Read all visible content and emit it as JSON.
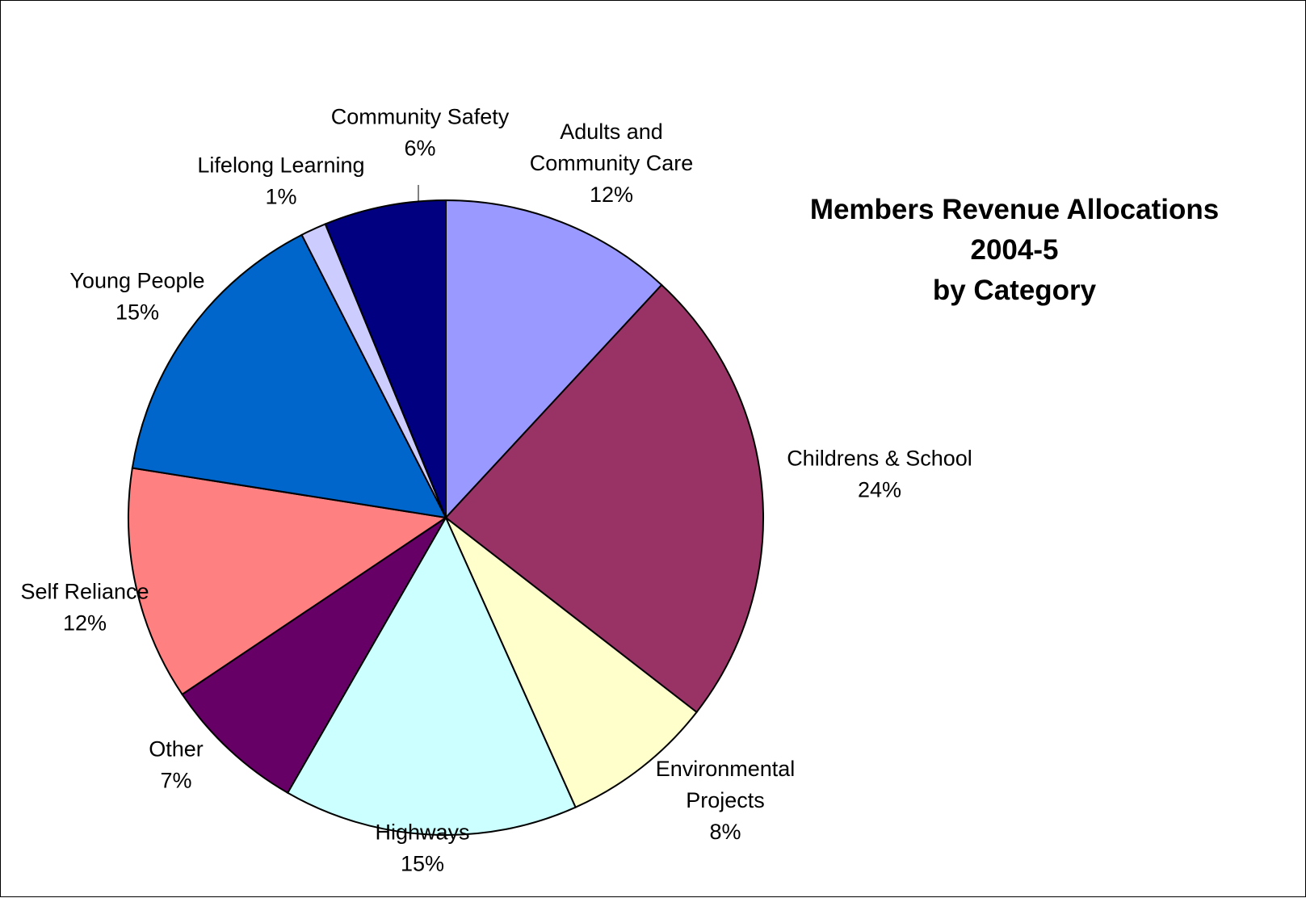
{
  "chart_data": {
    "type": "pie",
    "title_lines": [
      "Members Revenue Allocations",
      "2004-5",
      "by Category"
    ],
    "slices": [
      {
        "name": "Adults and Community Care",
        "label_lines": [
          "Adults and",
          "Community Care"
        ],
        "percent_label": "12%",
        "value": 11.9,
        "color": "#9999FF"
      },
      {
        "name": "Childrens & School",
        "label_lines": [
          "Childrens & School"
        ],
        "percent_label": "24%",
        "value": 23.6,
        "color": "#993366"
      },
      {
        "name": "Environmental Projects",
        "label_lines": [
          "Environmental",
          "Projects"
        ],
        "percent_label": "8%",
        "value": 7.8,
        "color": "#FFFFCC"
      },
      {
        "name": "Highways",
        "label_lines": [
          "Highways"
        ],
        "percent_label": "15%",
        "value": 15.0,
        "color": "#CCFFFF"
      },
      {
        "name": "Other",
        "label_lines": [
          "Other"
        ],
        "percent_label": "7%",
        "value": 7.3,
        "color": "#660066"
      },
      {
        "name": "Self Reliance",
        "label_lines": [
          "Self Reliance"
        ],
        "percent_label": "12%",
        "value": 11.9,
        "color": "#FF8080"
      },
      {
        "name": "Young People",
        "label_lines": [
          "Young People"
        ],
        "percent_label": "15%",
        "value": 15.0,
        "color": "#0066CC"
      },
      {
        "name": "Lifelong Learning",
        "label_lines": [
          "Lifelong Learning"
        ],
        "percent_label": "1%",
        "value": 1.3,
        "color": "#CCCCFF"
      },
      {
        "name": "Community Safety",
        "label_lines": [
          "Community Safety"
        ],
        "percent_label": "6%",
        "value": 6.2,
        "color": "#000080"
      }
    ],
    "start_angle_deg": 0,
    "direction": "clockwise",
    "legend": "none"
  }
}
